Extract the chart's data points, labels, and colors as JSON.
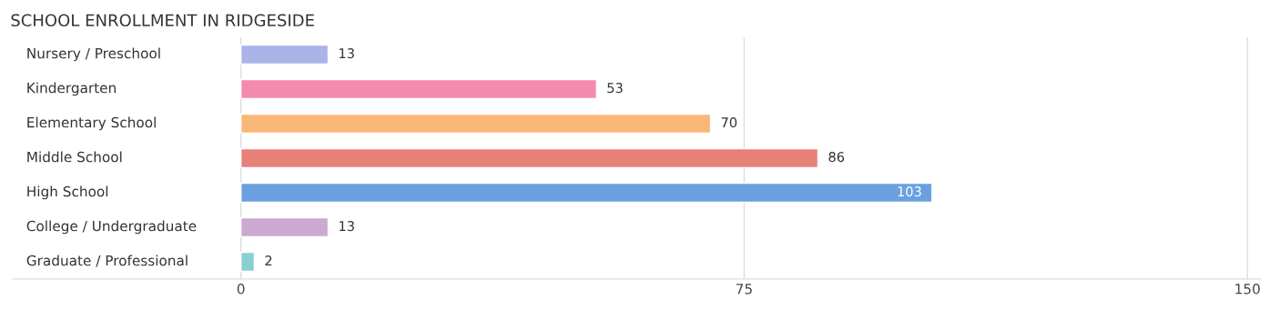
{
  "chart_data": {
    "type": "bar",
    "orientation": "horizontal",
    "title": "SCHOOL ENROLLMENT IN RIDGESIDE",
    "categories": [
      "Nursery / Preschool",
      "Kindergarten",
      "Elementary School",
      "Middle School",
      "High School",
      "College / Undergraduate",
      "Graduate / Professional"
    ],
    "values": [
      13,
      53,
      70,
      86,
      103,
      13,
      2
    ],
    "colors": [
      "#aab4e8",
      "#f48aad",
      "#f9b878",
      "#e8807a",
      "#6aa0e0",
      "#cba9d0",
      "#88cfd4"
    ],
    "xlim": [
      -34,
      152
    ],
    "xticks": [
      0,
      75,
      150
    ],
    "grid": "x",
    "data_labels": true
  }
}
